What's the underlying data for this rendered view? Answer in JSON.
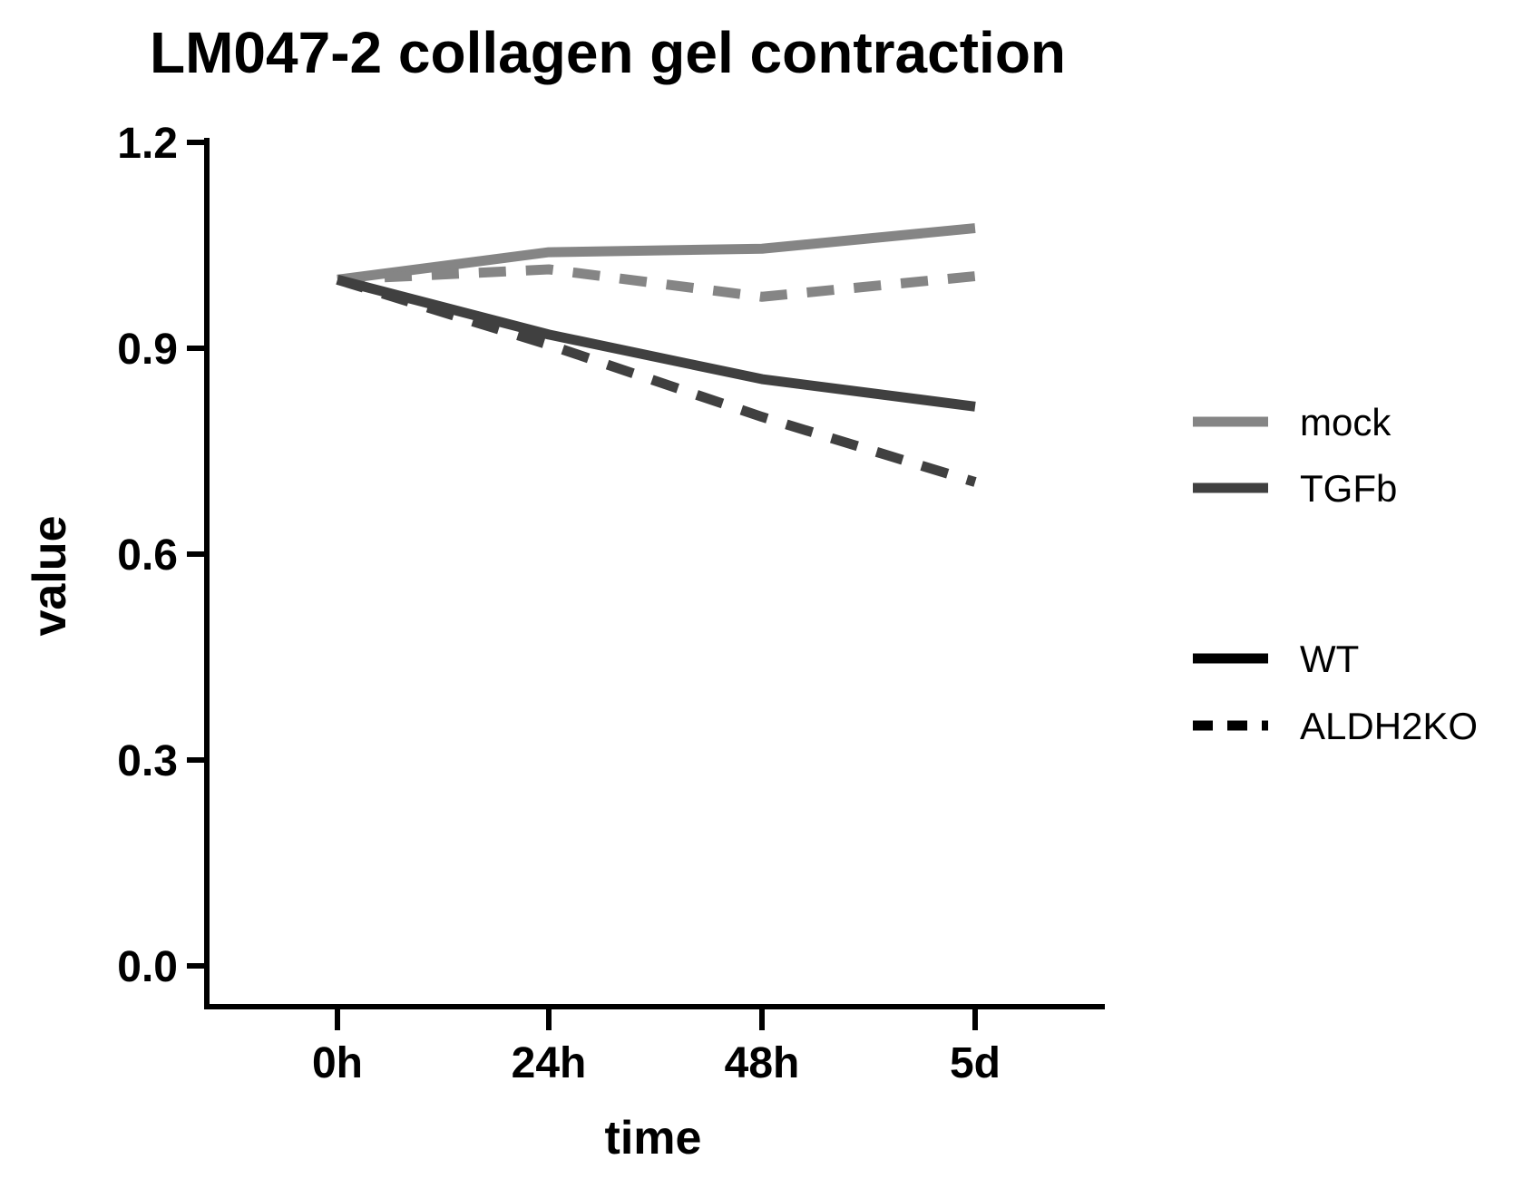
{
  "chart_data": {
    "type": "line",
    "title": "LM047-2 collagen gel contraction",
    "xlabel": "time",
    "ylabel": "value",
    "categories": [
      "0h",
      "24h",
      "48h",
      "5d"
    ],
    "ylim": [
      0.0,
      1.2
    ],
    "yticks": [
      "0.0",
      "0.3",
      "0.6",
      "0.9",
      "1.2"
    ],
    "series": [
      {
        "treatment": "mock",
        "genotype": "WT",
        "values": [
          1.0,
          1.04,
          1.045,
          1.075
        ]
      },
      {
        "treatment": "mock",
        "genotype": "ALDH2KO",
        "values": [
          1.0,
          1.015,
          0.975,
          1.005
        ]
      },
      {
        "treatment": "TGFb",
        "genotype": "WT",
        "values": [
          1.0,
          0.92,
          0.855,
          0.815
        ]
      },
      {
        "treatment": "TGFb",
        "genotype": "ALDH2KO",
        "values": [
          1.0,
          0.905,
          0.8,
          0.705
        ]
      }
    ],
    "legend": {
      "placement": "right",
      "color_entries": [
        {
          "label": "mock",
          "color": "#858585"
        },
        {
          "label": "TGFb",
          "color": "#404040"
        }
      ],
      "style_entries": [
        {
          "label": "WT",
          "dash": "solid"
        },
        {
          "label": "ALDH2KO",
          "dash": "dashed"
        }
      ]
    },
    "grid": false
  }
}
